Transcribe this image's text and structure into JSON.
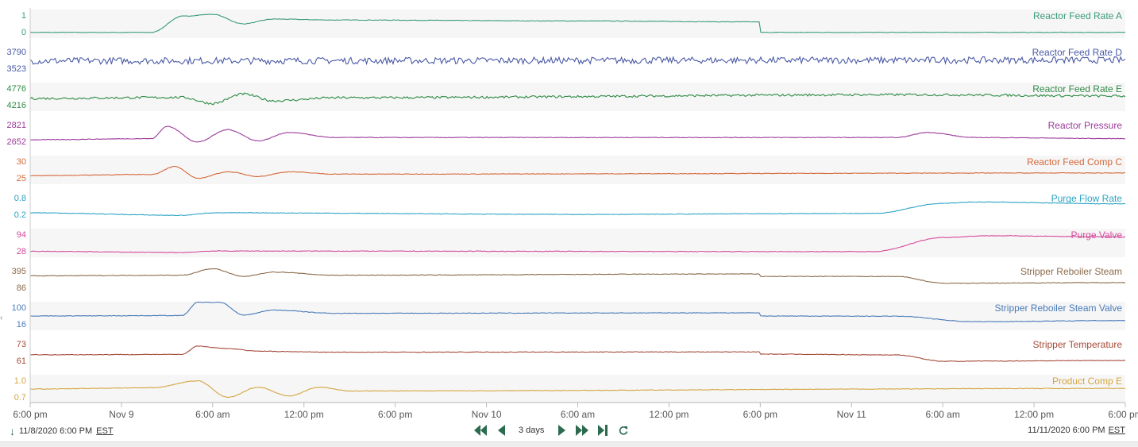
{
  "chart_data": {
    "type": "line",
    "x_range": [
      "2020-11-08 18:00",
      "2020-11-11 18:00"
    ],
    "x_ticks": [
      "6:00 pm",
      "Nov 9",
      "6:00 am",
      "12:00 pm",
      "6:00 pm",
      "Nov 10",
      "6:00 am",
      "12:00 pm",
      "6:00 pm",
      "Nov 11",
      "6:00 am",
      "12:00 pm",
      "6:00 pm"
    ],
    "lanes": [
      {
        "name": "Reactor Feed Rate A",
        "color": "#3a9a7c",
        "ymin": 0,
        "ymax": 1,
        "tick_top": "1",
        "tick_bottom": "0",
        "x": [
          "2020-11-08 18:00",
          "2020-11-09 02:00",
          "2020-11-09 04:00",
          "2020-11-09 06:00",
          "2020-11-09 08:00",
          "2020-11-09 10:00",
          "2020-11-09 14:00",
          "2020-11-10 06:00",
          "2020-11-10 17:59",
          "2020-11-10 18:00",
          "2020-11-11 18:00"
        ],
        "values": [
          0.05,
          0.05,
          0.9,
          1.0,
          0.5,
          0.75,
          0.7,
          0.65,
          0.6,
          0.05,
          0.05
        ]
      },
      {
        "name": "Reactor Feed Rate D",
        "color": "#4a5aa6",
        "ymin": 3523,
        "ymax": 3790,
        "tick_top": "3790",
        "tick_bottom": "3523",
        "x": [
          "2020-11-08 18:00",
          "2020-11-11 18:00"
        ],
        "values": [
          3650,
          3660
        ]
      },
      {
        "name": "Reactor Feed Rate E",
        "color": "#2e8b45",
        "ymin": 4216,
        "ymax": 4776,
        "tick_top": "4776",
        "tick_bottom": "4216",
        "x": [
          "2020-11-08 18:00",
          "2020-11-09 04:00",
          "2020-11-09 06:00",
          "2020-11-09 08:00",
          "2020-11-09 10:00",
          "2020-11-09 14:00",
          "2020-11-11 04:00",
          "2020-11-11 18:00"
        ],
        "values": [
          4450,
          4480,
          4300,
          4580,
          4380,
          4470,
          4560,
          4520
        ]
      },
      {
        "name": "Reactor Pressure",
        "color": "#9b3a9a",
        "ymin": 2652,
        "ymax": 2821,
        "tick_top": "2821",
        "tick_bottom": "2652",
        "x": [
          "2020-11-08 18:00",
          "2020-11-09 02:00",
          "2020-11-09 03:00",
          "2020-11-09 05:00",
          "2020-11-09 07:00",
          "2020-11-09 09:00",
          "2020-11-09 11:00",
          "2020-11-09 14:00",
          "2020-11-10 06:00",
          "2020-11-11 03:00",
          "2020-11-11 05:00",
          "2020-11-11 08:00",
          "2020-11-11 18:00"
        ],
        "values": [
          2680,
          2690,
          2800,
          2660,
          2770,
          2670,
          2745,
          2700,
          2700,
          2700,
          2745,
          2700,
          2690
        ]
      },
      {
        "name": "Reactor Feed Comp C",
        "color": "#d4683a",
        "ymin": 25,
        "ymax": 30,
        "tick_top": "30",
        "tick_bottom": "25",
        "x": [
          "2020-11-08 18:00",
          "2020-11-09 02:00",
          "2020-11-09 03:30",
          "2020-11-09 05:00",
          "2020-11-09 07:00",
          "2020-11-09 09:00",
          "2020-11-09 11:00",
          "2020-11-09 14:00",
          "2020-11-11 18:00"
        ],
        "values": [
          26,
          26.3,
          28.4,
          25.3,
          27,
          25.8,
          27,
          26.4,
          26.7
        ]
      },
      {
        "name": "Purge Flow Rate",
        "color": "#2ba3c4",
        "ymin": 0.2,
        "ymax": 0.8,
        "tick_top": "0.8",
        "tick_bottom": "0.2",
        "x": [
          "2020-11-08 18:00",
          "2020-11-09 04:00",
          "2020-11-09 06:00",
          "2020-11-10 06:00",
          "2020-11-11 01:30",
          "2020-11-11 06:00",
          "2020-11-11 08:00",
          "2020-11-11 18:00"
        ],
        "values": [
          0.3,
          0.22,
          0.3,
          0.25,
          0.28,
          0.6,
          0.64,
          0.58
        ]
      },
      {
        "name": "Purge Valve",
        "color": "#d44a9c",
        "ymin": 28,
        "ymax": 94,
        "tick_top": "94",
        "tick_bottom": "28",
        "x": [
          "2020-11-08 18:00",
          "2020-11-09 04:00",
          "2020-11-09 06:00",
          "2020-11-11 01:30",
          "2020-11-11 06:00",
          "2020-11-11 09:00",
          "2020-11-11 18:00"
        ],
        "values": [
          32,
          28,
          33,
          31,
          80,
          86,
          82
        ]
      },
      {
        "name": "Stripper Reboiler Steam",
        "color": "#8b6a4a",
        "ymin": 86,
        "ymax": 395,
        "tick_top": "395",
        "tick_bottom": "86",
        "x": [
          "2020-11-08 18:00",
          "2020-11-09 04:00",
          "2020-11-09 06:00",
          "2020-11-09 08:00",
          "2020-11-09 10:00",
          "2020-11-09 14:00",
          "2020-11-10 17:59",
          "2020-11-10 18:00",
          "2020-11-11 03:00",
          "2020-11-11 06:00",
          "2020-11-11 18:00"
        ],
        "values": [
          300,
          310,
          415,
          290,
          360,
          310,
          330,
          290,
          290,
          180,
          190
        ]
      },
      {
        "name": "Stripper Reboiler Steam Valve",
        "color": "#4a7ab8",
        "ymin": 16,
        "ymax": 100,
        "tick_top": "100",
        "tick_bottom": "16",
        "x": [
          "2020-11-08 18:00",
          "2020-11-09 04:00",
          "2020-11-09 05:00",
          "2020-11-09 06:30",
          "2020-11-09 08:00",
          "2020-11-09 10:00",
          "2020-11-09 14:00",
          "2020-11-10 17:59",
          "2020-11-10 18:00",
          "2020-11-11 03:00",
          "2020-11-11 08:00",
          "2020-11-11 18:00"
        ],
        "values": [
          58,
          60,
          118,
          118,
          62,
          84,
          70,
          72,
          58,
          57,
          33,
          38
        ]
      },
      {
        "name": "Stripper Temperature",
        "color": "#a64a3a",
        "ymin": 61,
        "ymax": 73,
        "tick_top": "73",
        "tick_bottom": "61",
        "x": [
          "2020-11-08 18:00",
          "2020-11-09 04:00",
          "2020-11-09 05:00",
          "2020-11-09 07:00",
          "2020-11-09 09:00",
          "2020-11-09 14:00",
          "2020-11-10 17:59",
          "2020-11-10 18:00",
          "2020-11-11 03:00",
          "2020-11-11 06:00",
          "2020-11-11 18:00"
        ],
        "values": [
          65.6,
          65.8,
          71,
          69.5,
          67.8,
          67.2,
          67.4,
          66,
          65.5,
          61.5,
          62
        ]
      },
      {
        "name": "Product Comp E",
        "color": "#d4a640",
        "ymin": 0.7,
        "ymax": 1.0,
        "tick_top": "1.0",
        "tick_bottom": "0.7",
        "x": [
          "2020-11-08 18:00",
          "2020-11-09 02:00",
          "2020-11-09 05:00",
          "2020-11-09 07:00",
          "2020-11-09 09:00",
          "2020-11-09 11:00",
          "2020-11-09 13:00",
          "2020-11-09 15:00",
          "2020-11-11 18:00"
        ],
        "values": [
          0.85,
          0.87,
          0.98,
          0.72,
          0.88,
          0.74,
          0.88,
          0.82,
          0.86
        ]
      }
    ]
  },
  "footer": {
    "start_datetime": "11/8/2020 6:00 PM",
    "start_tz": "EST",
    "end_datetime": "11/11/2020 6:00 PM",
    "end_tz": "EST",
    "range_label": "3 days"
  }
}
